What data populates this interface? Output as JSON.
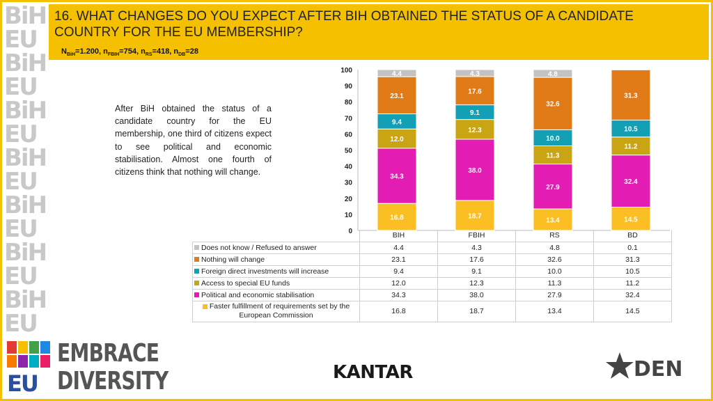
{
  "header": {
    "title": "16. WHAT CHANGES DO YOU EXPECT AFTER BIH OBTAINED THE STATUS OF A CANDIDATE COUNTRY FOR THE EU MEMBERSHIP?",
    "sample": [
      {
        "main": "N",
        "sub": "BiH",
        "rest": "=1.200, "
      },
      {
        "main": "n",
        "sub": "FBIH",
        "rest": "=754, "
      },
      {
        "main": "n",
        "sub": "RS",
        "rest": "=418, "
      },
      {
        "main": "n",
        "sub": "DB",
        "rest": "=28"
      }
    ]
  },
  "paragraph": "After BiH obtained the status of a candidate country for the EU membership, one third of citizens expect to see political and economic stabilisation. Almost one fourth of citizens think that nothing will change.",
  "watermark": {
    "word": "BiH EU"
  },
  "chart_data": {
    "type": "bar",
    "stacked": true,
    "categories": [
      "BIH",
      "FBIH",
      "RS",
      "BD"
    ],
    "ylim": [
      0,
      100
    ],
    "yticks": [
      0,
      10,
      20,
      30,
      40,
      50,
      60,
      70,
      80,
      90,
      100
    ],
    "grid": false,
    "series": [
      {
        "name": "Faster fulfillment of requirements set by the European Commission",
        "color": "#fbbf24",
        "values": [
          16.8,
          18.7,
          13.4,
          14.5
        ]
      },
      {
        "name": "Political and economic stabilisation",
        "color": "#e31cb3",
        "values": [
          34.3,
          38.0,
          27.9,
          32.4
        ]
      },
      {
        "name": "Access to special EU funds",
        "color": "#c9a514",
        "values": [
          12.0,
          12.3,
          11.3,
          11.2
        ]
      },
      {
        "name": "Foreign direct investments will increase",
        "color": "#13a0b4",
        "values": [
          9.4,
          9.1,
          10.0,
          10.5
        ]
      },
      {
        "name": "Nothing will change",
        "color": "#e07b18",
        "values": [
          23.1,
          17.6,
          32.6,
          31.3
        ]
      },
      {
        "name": "Does not know / Refused to answer",
        "color": "#c3c3c3",
        "values": [
          4.4,
          4.3,
          4.8,
          0.1
        ]
      }
    ],
    "labels": [
      [
        "16.8",
        "18.7",
        "13.4",
        "14.5"
      ],
      [
        "34.3",
        "38.0",
        "27.9",
        "32.4"
      ],
      [
        "12.0",
        "12.3",
        "11.3",
        "11.2"
      ],
      [
        "9.4",
        "9.1",
        "10.0",
        "10.5"
      ],
      [
        "23.1",
        "17.6",
        "32.6",
        "31.3"
      ],
      [
        "4.4",
        "4.3",
        "4.8",
        ""
      ]
    ]
  },
  "table": {
    "columns": [
      "BIH",
      "FBIH",
      "RS",
      "BD"
    ],
    "rows": [
      {
        "label": "Does not know / Refused to answer",
        "color": "#c3c3c3",
        "values": [
          "4.4",
          "4.3",
          "4.8",
          "0.1"
        ]
      },
      {
        "label": "Nothing will change",
        "color": "#e07b18",
        "values": [
          "23.1",
          "17.6",
          "32.6",
          "31.3"
        ]
      },
      {
        "label": "Foreign direct investments will increase",
        "color": "#13a0b4",
        "values": [
          "9.4",
          "9.1",
          "10.0",
          "10.5"
        ]
      },
      {
        "label": "Access to special EU funds",
        "color": "#c9a514",
        "values": [
          "12.0",
          "12.3",
          "11.3",
          "11.2"
        ]
      },
      {
        "label": "Political and economic stabilisation",
        "color": "#e31cb3",
        "values": [
          "34.3",
          "38.0",
          "27.9",
          "32.4"
        ]
      },
      {
        "label": "Faster fulfillment of requirements set by the European Commission",
        "color": "#fbbf24",
        "values": [
          "16.8",
          "18.7",
          "13.4",
          "14.5"
        ]
      }
    ]
  },
  "logos": {
    "embrace_line1": "EMBRACE",
    "embrace_line2": "DIVERSITY",
    "bih_mark": "BiH",
    "eu_mark": "EU",
    "kantar": "KANTAR",
    "den": "DEN"
  }
}
